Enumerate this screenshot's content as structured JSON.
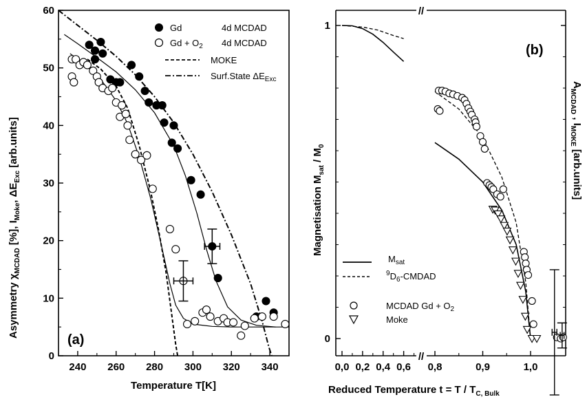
{
  "chart_data": [
    {
      "panel_label": "(a)",
      "type": "scatter",
      "xlabel": "Temperature   T[K]",
      "ylabel": {
        "pre": "Asymmetry χ",
        "sub": "MCDAD",
        "mid": " [%],   I",
        "sub2": "Moke",
        "mid2": ", ΔE",
        "sub3": "Exc",
        "post": " [arb.units]"
      },
      "xlim": [
        230,
        350
      ],
      "ylim": [
        0,
        60
      ],
      "xticks": [
        240,
        260,
        280,
        300,
        320,
        340
      ],
      "yticks": [
        0,
        10,
        20,
        30,
        40,
        50,
        60
      ],
      "legend": {
        "gd": {
          "a": "Gd",
          "b": "4d MCDAD"
        },
        "gdo2": {
          "a": "Gd + O",
          "sub": "2",
          "b": "4d MCDAD"
        },
        "moke": "MOKE",
        "surf": "Surf.State ΔE",
        "surf_sub": "Exc"
      },
      "series": [
        {
          "name": "Gd 4d MCDAD",
          "marker": "filled-circle",
          "points": [
            [
              246,
              54
            ],
            [
              249,
              53
            ],
            [
              252,
              54.5
            ],
            [
              249,
              51.5
            ],
            [
              253,
              52.5
            ],
            [
              257,
              48
            ],
            [
              260,
              47.5
            ],
            [
              262,
              47.5
            ],
            [
              268,
              50.5
            ],
            [
              272,
              48.5
            ],
            [
              275,
              46
            ],
            [
              277,
              44
            ],
            [
              281,
              43.5
            ],
            [
              284,
              43.5
            ],
            [
              285,
              40.5
            ],
            [
              289,
              37
            ],
            [
              290,
              40
            ],
            [
              292,
              36
            ],
            [
              299,
              30.5
            ],
            [
              304,
              28
            ],
            [
              310,
              19
            ],
            [
              313,
              13.5
            ],
            [
              333,
              6.8
            ],
            [
              338,
              9.5
            ],
            [
              342,
              7.5
            ]
          ]
        },
        {
          "name": "Gd + O2 4d MCDAD",
          "marker": "open-circle",
          "points": [
            [
              237,
              51.5
            ],
            [
              239,
              51.5
            ],
            [
              241,
              50.5
            ],
            [
              243,
              51
            ],
            [
              245,
              50.5
            ],
            [
              237,
              48.5
            ],
            [
              238,
              47.5
            ],
            [
              248,
              49.5
            ],
            [
              250,
              48.5
            ],
            [
              251,
              47.5
            ],
            [
              253,
              46.5
            ],
            [
              256,
              46
            ],
            [
              258,
              46.5
            ],
            [
              260,
              44
            ],
            [
              262,
              41.5
            ],
            [
              263,
              43.5
            ],
            [
              265,
              42
            ],
            [
              266,
              40
            ],
            [
              267,
              37.5
            ],
            [
              270,
              35
            ],
            [
              273,
              34
            ],
            [
              276,
              34.8
            ],
            [
              279,
              29
            ],
            [
              288,
              22
            ],
            [
              291,
              18.5
            ],
            [
              295,
              13
            ],
            [
              297,
              5.5
            ],
            [
              301,
              6
            ],
            [
              305,
              7.5
            ],
            [
              307,
              8
            ],
            [
              309,
              6.8
            ],
            [
              313,
              6
            ],
            [
              316,
              6.5
            ],
            [
              318,
              5.8
            ],
            [
              321,
              5.8
            ],
            [
              325,
              3.5
            ],
            [
              327,
              5.2
            ],
            [
              332,
              6.5
            ],
            [
              336,
              6.8
            ],
            [
              342,
              6.8
            ],
            [
              348,
              5.5
            ]
          ]
        },
        {
          "name": "fit Gd",
          "line": "solid",
          "points": [
            [
              233,
              55.8
            ],
            [
              240,
              54.2
            ],
            [
              250,
              51.8
            ],
            [
              260,
              49.3
            ],
            [
              270,
              46.2
            ],
            [
              280,
              42.2
            ],
            [
              290,
              36.5
            ],
            [
              296,
              31.3
            ],
            [
              302,
              24.8
            ],
            [
              307,
              18.5
            ],
            [
              312,
              13
            ],
            [
              318,
              8.5
            ],
            [
              325,
              6.2
            ],
            [
              333,
              5.3
            ],
            [
              343,
              5
            ],
            [
              350,
              5
            ]
          ]
        },
        {
          "name": "fit Gd + O2",
          "line": "solid",
          "points": [
            [
              236,
              52.5
            ],
            [
              244,
              50.5
            ],
            [
              252,
              48
            ],
            [
              260,
              44.3
            ],
            [
              266,
              40.3
            ],
            [
              272,
              34.5
            ],
            [
              278,
              27.3
            ],
            [
              284,
              18.5
            ],
            [
              288,
              12.5
            ],
            [
              291,
              8.8
            ],
            [
              295,
              6.5
            ],
            [
              300,
              5.5
            ],
            [
              310,
              5.1
            ],
            [
              320,
              5
            ],
            [
              343,
              5
            ]
          ]
        },
        {
          "name": "MOKE",
          "line": "dashed",
          "points": [
            [
              245,
              51.5
            ],
            [
              252,
              49.8
            ],
            [
              260,
              46.8
            ],
            [
              266,
              43
            ],
            [
              272,
              36.5
            ],
            [
              278,
              28.5
            ],
            [
              282,
              22
            ],
            [
              286,
              14.5
            ],
            [
              289,
              7
            ],
            [
              291,
              2
            ],
            [
              292,
              0
            ]
          ]
        },
        {
          "name": "Surf.State ΔE Exc",
          "line": "dash-dot",
          "points": [
            [
              230,
              60
            ],
            [
              240,
              57.4
            ],
            [
              250,
              54.8
            ],
            [
              260,
              52
            ],
            [
              270,
              48.8
            ],
            [
              280,
              45
            ],
            [
              290,
              40.5
            ],
            [
              300,
              35
            ],
            [
              310,
              28.5
            ],
            [
              320,
              21
            ],
            [
              330,
              12.5
            ],
            [
              336,
              6
            ],
            [
              339.5,
              1.5
            ],
            [
              341,
              0
            ]
          ]
        }
      ],
      "error_bars": [
        {
          "x": 295,
          "y": 13,
          "xerr": 5,
          "yerr": 3.5
        },
        {
          "x": 310,
          "y": 19,
          "xerr": 4,
          "yerr": 3
        }
      ]
    },
    {
      "panel_label": "(b)",
      "type": "scatter",
      "xlabel": {
        "pre": "Reduced Temperature     t = T / T",
        "sub": "C, Bulk"
      },
      "ylabel_left": {
        "pre": "Magnetisation   M",
        "sub": "sat",
        "post": " / M",
        "sub2": "0"
      },
      "ylabel_right": {
        "pre": "A",
        "sub": "MCDAD",
        "mid": " ,   I",
        "sub2": "MOKE",
        "post": "  [arb.units]"
      },
      "break_x": "//",
      "xticks_left": [
        "0,0",
        "0,2",
        "0,4",
        "0,6"
      ],
      "xticks_right": [
        "0,8",
        "0,9",
        "1,0"
      ],
      "yticks": [
        "0",
        "1"
      ],
      "ylim": [
        0,
        1
      ],
      "legend": {
        "msat": {
          "pre": "M",
          "sub": "sat"
        },
        "cmdad": {
          "sup": "9",
          "pre": "D",
          "sub": "6",
          "post": "-CMDAD"
        },
        "mcdad": {
          "pre": "MCDAD Gd + O",
          "sub": "2"
        },
        "moke": "Moke"
      },
      "series": [
        {
          "name": "MCDAD Gd + O2",
          "marker": "open-circle",
          "points": [
            [
              0.808,
              0.792
            ],
            [
              0.815,
              0.792
            ],
            [
              0.822,
              0.789
            ],
            [
              0.83,
              0.783
            ],
            [
              0.838,
              0.78
            ],
            [
              0.847,
              0.775
            ],
            [
              0.857,
              0.769
            ],
            [
              0.862,
              0.762
            ],
            [
              0.866,
              0.75
            ],
            [
              0.87,
              0.736
            ],
            [
              0.874,
              0.725
            ],
            [
              0.877,
              0.715
            ],
            [
              0.806,
              0.733
            ],
            [
              0.81,
              0.727
            ],
            [
              0.883,
              0.7
            ],
            [
              0.885,
              0.691
            ],
            [
              0.887,
              0.677
            ],
            [
              0.895,
              0.647
            ],
            [
              0.9,
              0.628
            ],
            [
              0.904,
              0.606
            ],
            [
              0.909,
              0.497
            ],
            [
              0.914,
              0.49
            ],
            [
              0.918,
              0.484
            ],
            [
              0.922,
              0.477
            ],
            [
              0.93,
              0.461
            ],
            [
              0.937,
              0.453
            ],
            [
              0.943,
              0.477
            ],
            [
              0.986,
              0.277
            ],
            [
              0.988,
              0.26
            ],
            [
              0.99,
              0.24
            ],
            [
              0.992,
              0.22
            ],
            [
              0.995,
              0.203
            ],
            [
              1.003,
              0.12
            ],
            [
              1.006,
              0.046
            ],
            [
              1.055,
              0.004
            ],
            [
              1.063,
              0.0
            ],
            [
              1.068,
              0.004
            ]
          ]
        },
        {
          "name": "Moke",
          "marker": "open-triangle-down",
          "points": [
            [
              0.921,
              0.413
            ],
            [
              0.926,
              0.41
            ],
            [
              0.932,
              0.398
            ],
            [
              0.938,
              0.382
            ],
            [
              0.945,
              0.361
            ],
            [
              0.951,
              0.343
            ],
            [
              0.957,
              0.315
            ],
            [
              0.963,
              0.283
            ],
            [
              0.969,
              0.247
            ],
            [
              0.974,
              0.208
            ],
            [
              0.979,
              0.17
            ],
            [
              0.984,
              0.125
            ],
            [
              0.989,
              0.071
            ],
            [
              0.993,
              0.029
            ],
            [
              1.003,
              0.0
            ],
            [
              1.013,
              0.0
            ]
          ]
        },
        {
          "name": "M_sat",
          "line": "solid",
          "points_left": [
            [
              0,
              1.0
            ],
            [
              0.1,
              0.999
            ],
            [
              0.2,
              0.99
            ],
            [
              0.3,
              0.972
            ],
            [
              0.4,
              0.946
            ],
            [
              0.5,
              0.915
            ],
            [
              0.6,
              0.885
            ]
          ],
          "points_right": [
            [
              0.8,
              0.626
            ],
            [
              0.85,
              0.573
            ],
            [
              0.9,
              0.5
            ],
            [
              0.94,
              0.41
            ],
            [
              0.97,
              0.3
            ],
            [
              0.99,
              0.15
            ],
            [
              1.0,
              0.0
            ]
          ]
        },
        {
          "name": "9D6-CMDAD",
          "line": "dashed",
          "points_left": [
            [
              0,
              1.0
            ],
            [
              0.2,
              0.995
            ],
            [
              0.35,
              0.985
            ],
            [
              0.5,
              0.968
            ],
            [
              0.6,
              0.958
            ]
          ],
          "points_right": [
            [
              0.8,
              0.789
            ],
            [
              0.85,
              0.733
            ],
            [
              0.9,
              0.642
            ],
            [
              0.94,
              0.515
            ],
            [
              0.97,
              0.37
            ],
            [
              0.99,
              0.18
            ],
            [
              1.0,
              0.0
            ]
          ]
        }
      ],
      "error_bars": [
        {
          "x": 1.05,
          "y": 0.02,
          "xerr": 0.005,
          "yerr": 0.2
        },
        {
          "x": 1.066,
          "y": 0.01,
          "xerr": 0.004,
          "yerr": 0.04
        }
      ]
    }
  ]
}
